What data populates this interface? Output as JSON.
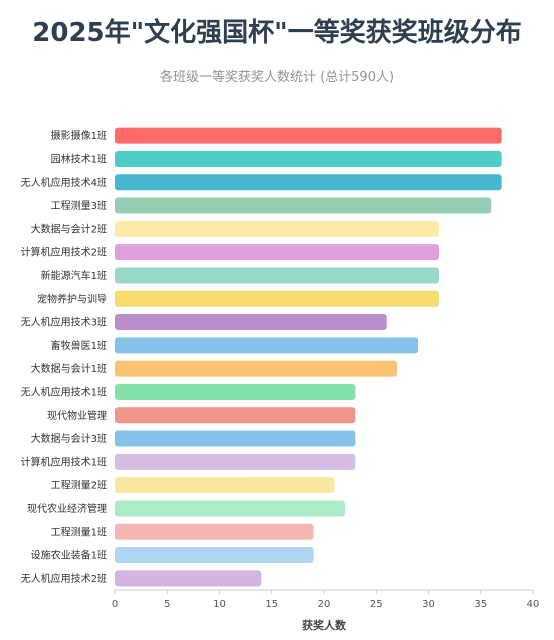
{
  "title": "2025年\"文化强国杯\"一等奖获奖班级分布",
  "subtitle": "各班级一等奖获奖人数统计 (总计590人)",
  "chart_data": {
    "type": "bar",
    "orientation": "horizontal",
    "xlabel": "获奖人数",
    "ylabel": "",
    "xlim": [
      0,
      40
    ],
    "xticks": [
      0,
      5,
      10,
      15,
      20,
      25,
      30,
      35,
      40
    ],
    "grid": false,
    "legend": "none",
    "categories": [
      "摄影摄像1班",
      "园林技术1班",
      "无人机应用技术4班",
      "工程测量3班",
      "大数据与会计2班",
      "计算机应用技术2班",
      "新能源汽车1班",
      "宠物养护与训导",
      "无人机应用技术3班",
      "畜牧兽医1班",
      "大数据与会计1班",
      "无人机应用技术1班",
      "现代物业管理",
      "大数据与会计3班",
      "计算机应用技术1班",
      "工程测量2班",
      "现代农业经济管理",
      "工程测量1班",
      "设施农业装备1班",
      "无人机应用技术2班"
    ],
    "values": [
      37,
      37,
      37,
      36,
      31,
      31,
      31,
      31,
      26,
      29,
      27,
      23,
      23,
      23,
      23,
      21,
      22,
      19,
      19,
      14
    ],
    "colors": [
      "#ff6b6b",
      "#4ecdc4",
      "#45b7d1",
      "#96ceb4",
      "#ffeaa7",
      "#dda0dd",
      "#98d8c8",
      "#f7dc6f",
      "#bb8fce",
      "#85c1e9",
      "#f8c471",
      "#82e0aa",
      "#f1948a",
      "#85c1e9",
      "#d7bde2",
      "#f9e79f",
      "#abebc6",
      "#f5b7b1",
      "#aed6f1",
      "#d2b4de"
    ]
  }
}
